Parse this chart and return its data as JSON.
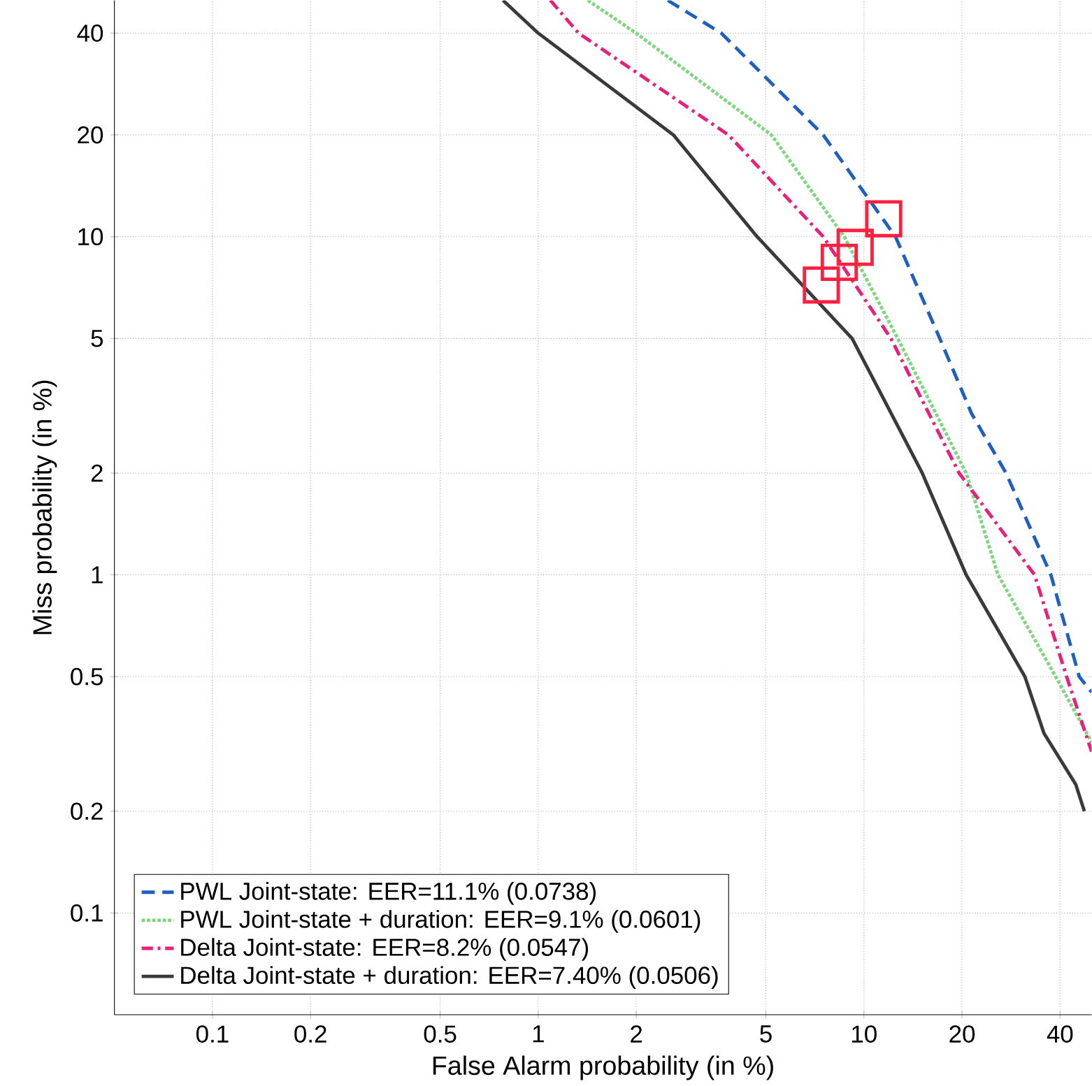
{
  "chart_data": {
    "type": "line",
    "xlabel": "False Alarm probability (in %)",
    "ylabel": "Miss probability (in %)",
    "log": "xy",
    "xlim": [
      0.05,
      50
    ],
    "ylim": [
      0.05,
      50
    ],
    "xticks": [
      0.1,
      0.2,
      0.5,
      1,
      2,
      5,
      10,
      20,
      40
    ],
    "yticks": [
      0.1,
      0.2,
      0.5,
      1,
      2,
      5,
      10,
      20,
      40
    ],
    "grid": true,
    "legend": "bottom left",
    "series": [
      {
        "name": "PWL Joint-state: EER=11.1% (0.0738)",
        "color": "#1f5fbf",
        "line_style": "dashed",
        "marker": "none",
        "x": [
          2.5,
          3.65,
          7.5,
          12.5,
          17.1,
          21.4,
          27.3,
          37.5,
          45.8,
          50
        ],
        "values": [
          50,
          40,
          20,
          10,
          5,
          3.0,
          2,
          1,
          0.5,
          0.45
        ]
      },
      {
        "name": "PWL Joint-state + duration: EER=9.1% (0.0601)",
        "color": "#7ed67e",
        "line_style": "dotted",
        "marker": "none",
        "x": [
          1.42,
          2.0,
          5.2,
          8.7,
          12.7,
          20.6,
          25.8,
          38.8,
          50
        ],
        "values": [
          50,
          40,
          20,
          10,
          5,
          2,
          1,
          0.5,
          0.32
        ]
      },
      {
        "name": "Delta Joint-state: EER=8.2% (0.0547)",
        "color": "#e8207a",
        "line_style": "dashdot",
        "marker": "none",
        "x": [
          1.09,
          1.33,
          3.84,
          7.5,
          12.1,
          19.6,
          33.4,
          41.9,
          50
        ],
        "values": [
          50,
          40,
          20,
          10,
          5,
          2,
          1,
          0.5,
          0.3
        ]
      },
      {
        "name": "Delta Joint-state + duration: EER=7.40% (0.0506)",
        "color": "#3a3a3a",
        "line_style": "solid",
        "marker": "none",
        "x": [
          0.78,
          1.0,
          2.6,
          4.7,
          9.2,
          15.1,
          20.6,
          31.2,
          35.7,
          44.7,
          47.5
        ],
        "values": [
          50,
          40,
          20,
          10,
          5,
          2,
          1,
          0.5,
          0.34,
          0.24,
          0.2
        ]
      },
      {
        "type": "scatter",
        "color": "#ff2040",
        "marker": "square",
        "x": [
          11.5,
          9.4,
          8.4,
          7.4
        ],
        "values": [
          11.3,
          9.3,
          8.4,
          7.2
        ]
      }
    ]
  }
}
